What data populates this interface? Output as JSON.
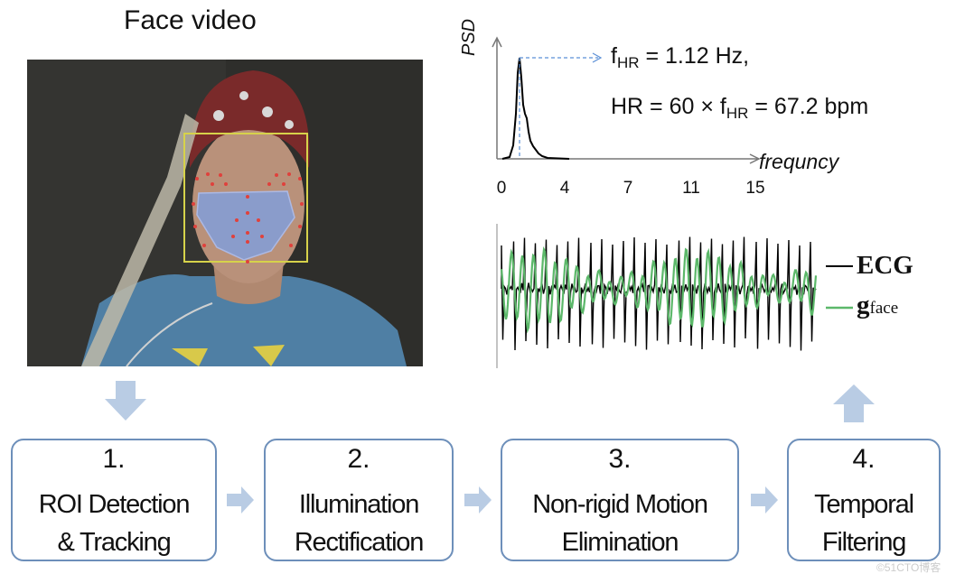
{
  "title": "Face video",
  "psd": {
    "ylabel": "PSD",
    "xlabel": "frequncy",
    "ticks": [
      "0",
      "4",
      "7",
      "11",
      "15"
    ],
    "fhr_prefix": "f",
    "fhr_sub": "HR",
    "fhr_suffix": " = 1.12 Hz,",
    "hr_prefix": "HR = 60 × f",
    "hr_sub": "HR",
    "hr_suffix": " = 67.2 bpm"
  },
  "legend": {
    "ecg": "ECG",
    "gface_main": "g",
    "gface_sub": "face",
    "ecg_color": "#000000",
    "gface_color": "#5cb86a"
  },
  "steps": [
    {
      "num": "1.",
      "label": "ROI Detection\n& Tracking"
    },
    {
      "num": "2.",
      "label": "Illumination\nRectification"
    },
    {
      "num": "3.",
      "label": "Non-rigid Motion\nElimination"
    },
    {
      "num": "4.",
      "label": "Temporal\nFiltering"
    }
  ],
  "colors": {
    "box_border": "#6d8fba",
    "arrow_fill": "#b9cce4",
    "roi_fill": "#7f9fe0"
  },
  "watermark": "©51CTO博客"
}
